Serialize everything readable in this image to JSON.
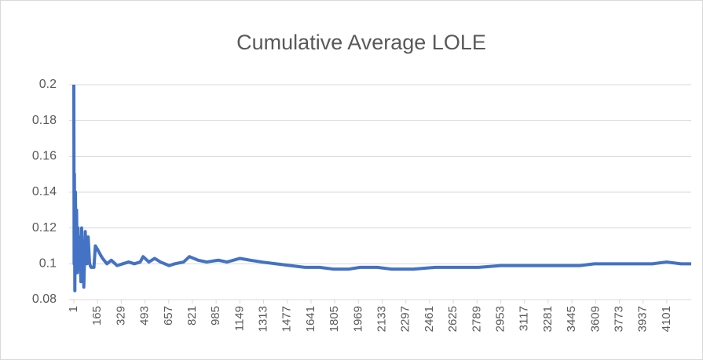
{
  "chart_data": {
    "type": "line",
    "title": "Cumulative Average LOLE",
    "x": [
      1,
      3,
      5,
      8,
      12,
      16,
      20,
      25,
      30,
      35,
      40,
      50,
      55,
      60,
      65,
      70,
      80,
      90,
      100,
      110,
      120,
      140,
      150,
      165,
      185,
      200,
      230,
      260,
      300,
      340,
      380,
      420,
      460,
      480,
      520,
      560,
      600,
      660,
      700,
      760,
      800,
      860,
      920,
      1000,
      1060,
      1150,
      1220,
      1300,
      1400,
      1500,
      1600,
      1700,
      1800,
      1900,
      1980,
      2100,
      2200,
      2350,
      2500,
      2650,
      2800,
      2950,
      3100,
      3300,
      3500,
      3600,
      3800,
      4000,
      4100,
      4200,
      4270
    ],
    "series": [
      {
        "name": "Cumulative Average LOLE",
        "color": "#4472c4",
        "values": [
          0.2,
          0.1,
          0.15,
          0.085,
          0.14,
          0.1,
          0.13,
          0.095,
          0.12,
          0.1,
          0.115,
          0.09,
          0.12,
          0.1,
          0.11,
          0.087,
          0.118,
          0.1,
          0.115,
          0.1,
          0.098,
          0.098,
          0.11,
          0.108,
          0.105,
          0.103,
          0.1,
          0.102,
          0.099,
          0.1,
          0.101,
          0.1,
          0.101,
          0.104,
          0.101,
          0.103,
          0.101,
          0.099,
          0.1,
          0.101,
          0.104,
          0.102,
          0.101,
          0.102,
          0.101,
          0.103,
          0.102,
          0.101,
          0.1,
          0.099,
          0.098,
          0.098,
          0.097,
          0.097,
          0.098,
          0.098,
          0.097,
          0.097,
          0.098,
          0.098,
          0.098,
          0.099,
          0.099,
          0.099,
          0.099,
          0.1,
          0.1,
          0.1,
          0.101,
          0.1,
          0.1
        ]
      }
    ],
    "xlim": [
      1,
      4270
    ],
    "xticks": [
      1,
      165,
      329,
      493,
      657,
      821,
      985,
      1149,
      1313,
      1477,
      1641,
      1805,
      1969,
      2133,
      2297,
      2461,
      2625,
      2789,
      2953,
      3117,
      3281,
      3445,
      3609,
      3773,
      3937,
      4101
    ],
    "ylim": [
      0.08,
      0.2
    ],
    "yticks": [
      0.08,
      0.1,
      0.12,
      0.14,
      0.16,
      0.18,
      0.2
    ],
    "grid": true
  }
}
